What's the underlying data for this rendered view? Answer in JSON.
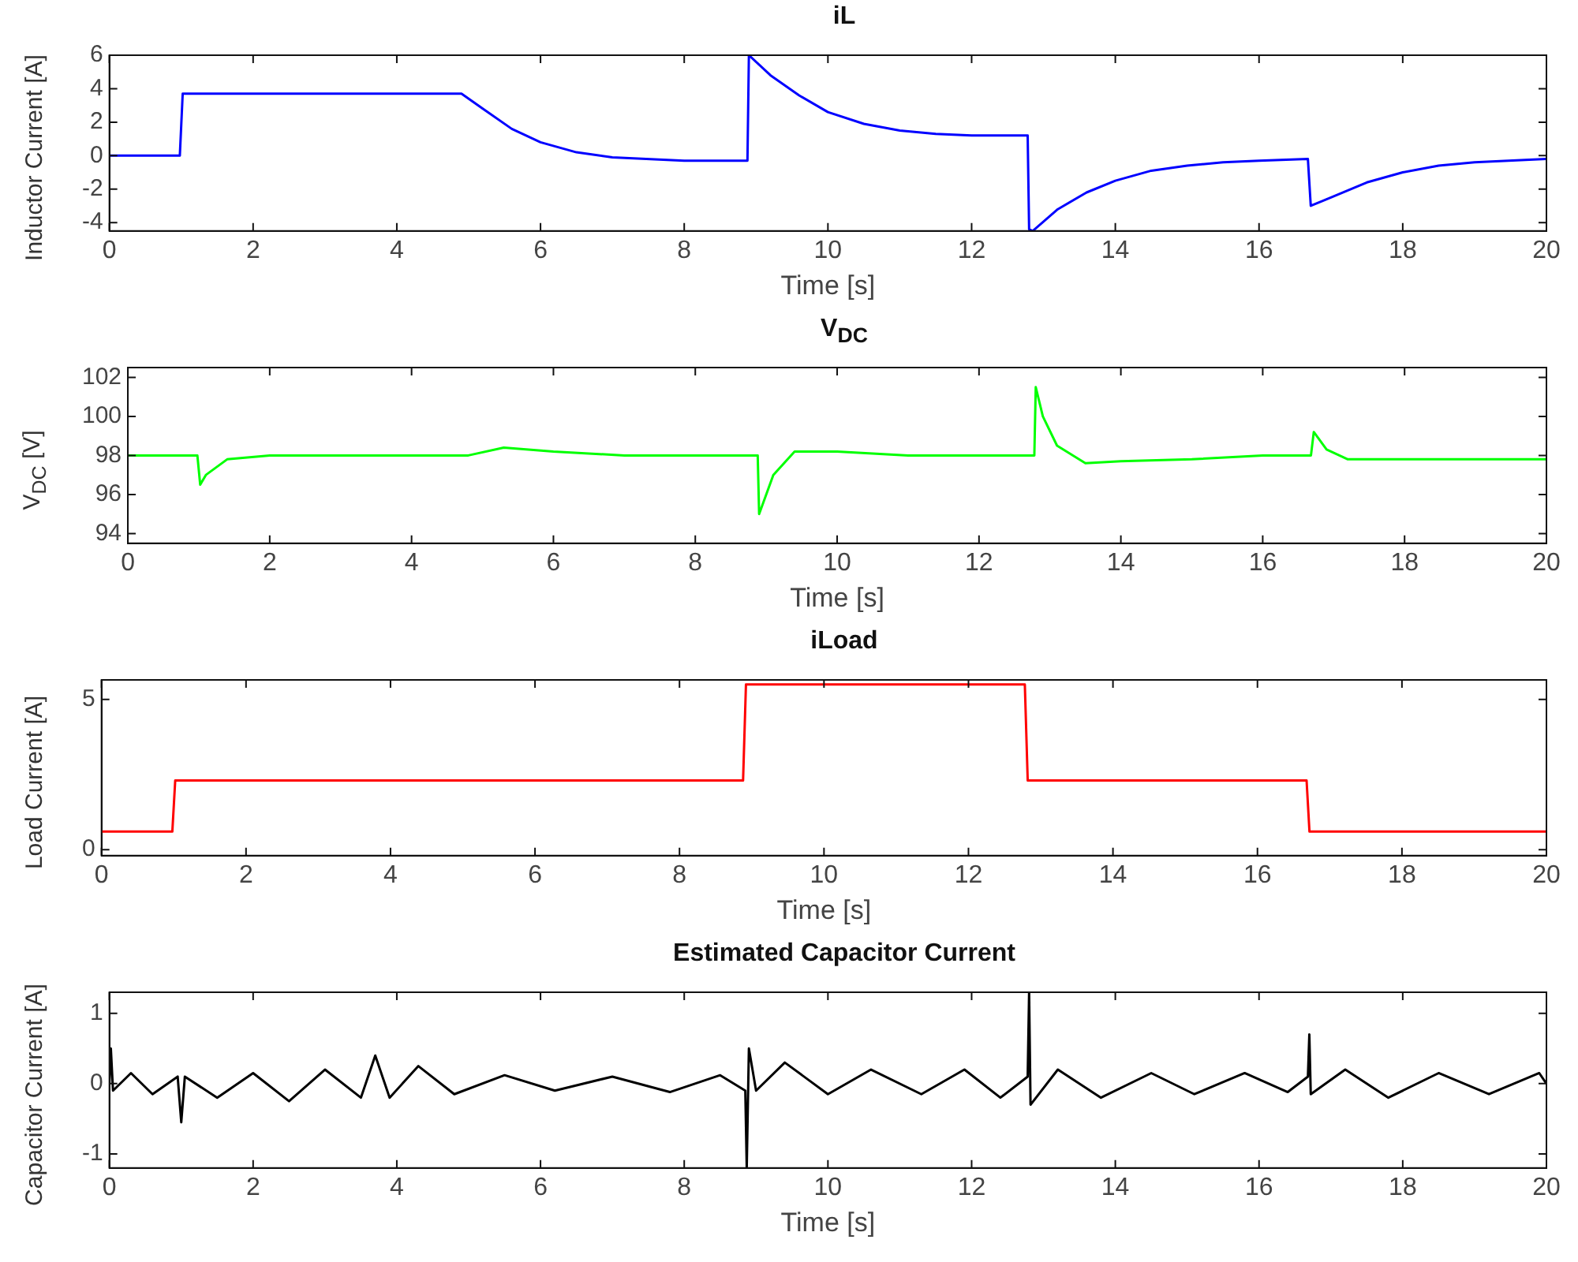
{
  "chart_data": [
    {
      "type": "line",
      "title": "iL",
      "xlabel": "Time [s]",
      "ylabel": "Inductor Current [A]",
      "xlim": [
        0,
        20
      ],
      "xticks": [
        0,
        2,
        4,
        6,
        8,
        10,
        12,
        14,
        16,
        18,
        20
      ],
      "ylim": [
        -4.5,
        6
      ],
      "yticks": [
        -4,
        -2,
        0,
        2,
        4,
        6
      ],
      "grid": false,
      "legend": false,
      "marker": "none",
      "series": [
        {
          "color": "#0000ff",
          "x": [
            0,
            0.98,
            1.02,
            2,
            3,
            4,
            4.9,
            5.2,
            5.6,
            6,
            6.5,
            7,
            8,
            8.88,
            8.9,
            9.2,
            9.6,
            10,
            10.5,
            11,
            11.5,
            12,
            12.78,
            12.8,
            12.85,
            13.2,
            13.6,
            14,
            14.5,
            15,
            15.5,
            16,
            16.68,
            16.72,
            17,
            17.5,
            18,
            18.5,
            19,
            20
          ],
          "values": [
            0,
            0,
            3.7,
            3.7,
            3.7,
            3.7,
            3.7,
            2.8,
            1.6,
            0.8,
            0.2,
            -0.1,
            -0.3,
            -0.3,
            6,
            4.8,
            3.6,
            2.6,
            1.9,
            1.5,
            1.3,
            1.2,
            1.2,
            -4.4,
            -4.5,
            -3.2,
            -2.2,
            -1.5,
            -0.9,
            -0.6,
            -0.4,
            -0.3,
            -0.2,
            -3,
            -2.5,
            -1.6,
            -1,
            -0.6,
            -0.4,
            -0.2
          ]
        }
      ]
    },
    {
      "type": "line",
      "title": "V$_{DC}$",
      "xlabel": "Time [s]",
      "ylabel": "V$_{DC}$ [V]",
      "xlim": [
        0,
        20
      ],
      "xticks": [
        0,
        2,
        4,
        6,
        8,
        10,
        12,
        14,
        16,
        18,
        20
      ],
      "ylim": [
        93.5,
        102.5
      ],
      "yticks": [
        94,
        96,
        98,
        100,
        102
      ],
      "grid": false,
      "legend": false,
      "marker": "none",
      "series": [
        {
          "color": "#00ff00",
          "x": [
            0,
            0.98,
            1.02,
            1.1,
            1.4,
            2,
            3,
            4,
            4.8,
            5.3,
            6,
            7,
            8,
            8.88,
            8.9,
            9.1,
            9.4,
            10,
            11,
            12,
            12.78,
            12.8,
            12.9,
            13.1,
            13.5,
            14,
            15,
            16,
            16.68,
            16.72,
            16.9,
            17.2,
            18,
            19,
            20
          ],
          "values": [
            98,
            98,
            96.5,
            97,
            97.8,
            98,
            98,
            98,
            98,
            98.4,
            98.2,
            98,
            98,
            98,
            95,
            97,
            98.2,
            98.2,
            98,
            98,
            98,
            101.5,
            100,
            98.5,
            97.6,
            97.7,
            97.8,
            98,
            98,
            99.2,
            98.3,
            97.8,
            97.8,
            97.8,
            97.8
          ]
        }
      ]
    },
    {
      "type": "line",
      "title": "iLoad",
      "xlabel": "Time [s]",
      "ylabel": "Load Current [A]",
      "xlim": [
        0,
        20
      ],
      "xticks": [
        0,
        2,
        4,
        6,
        8,
        10,
        12,
        14,
        16,
        18,
        20
      ],
      "ylim": [
        -0.2,
        5.65
      ],
      "yticks": [
        0,
        5
      ],
      "grid": false,
      "legend": false,
      "marker": "none",
      "series": [
        {
          "color": "#ff0000",
          "x": [
            0,
            0.98,
            1.02,
            8.88,
            8.92,
            12.78,
            12.82,
            16.68,
            16.72,
            20
          ],
          "values": [
            0.6,
            0.6,
            2.3,
            2.3,
            5.5,
            5.5,
            2.3,
            2.3,
            0.6,
            0.6
          ]
        }
      ]
    },
    {
      "type": "line",
      "title": "Estimated Capacitor Current",
      "xlabel": "Time [s]",
      "ylabel": "Capacitor Current [A]",
      "xlim": [
        0,
        20
      ],
      "xticks": [
        0,
        2,
        4,
        6,
        8,
        10,
        12,
        14,
        16,
        18,
        20
      ],
      "ylim": [
        -1.2,
        1.3
      ],
      "yticks": [
        -1,
        0,
        1
      ],
      "grid": false,
      "legend": false,
      "marker": "none",
      "series": [
        {
          "color": "#000000",
          "x": [
            0,
            0.02,
            0.05,
            0.3,
            0.6,
            0.95,
            1,
            1.05,
            1.5,
            2,
            2.5,
            3,
            3.5,
            3.7,
            3.9,
            4.3,
            4.8,
            5.5,
            6.2,
            7,
            7.8,
            8.5,
            8.85,
            8.87,
            8.9,
            9,
            9.4,
            10,
            10.6,
            11.3,
            11.9,
            12.4,
            12.78,
            12.8,
            12.82,
            13.2,
            13.8,
            14.5,
            15.1,
            15.8,
            16.4,
            16.68,
            16.7,
            16.72,
            17.2,
            17.8,
            18.5,
            19.2,
            19.9,
            20
          ],
          "values": [
            0,
            0.5,
            -0.1,
            0.15,
            -0.15,
            0.1,
            -0.55,
            0.1,
            -0.2,
            0.15,
            -0.25,
            0.2,
            -0.2,
            0.4,
            -0.2,
            0.25,
            -0.15,
            0.12,
            -0.1,
            0.1,
            -0.12,
            0.12,
            -0.1,
            -1.2,
            0.5,
            -0.1,
            0.3,
            -0.15,
            0.2,
            -0.15,
            0.2,
            -0.2,
            0.1,
            1.3,
            -0.3,
            0.2,
            -0.2,
            0.15,
            -0.15,
            0.15,
            -0.12,
            0.1,
            0.7,
            -0.15,
            0.2,
            -0.2,
            0.15,
            -0.15,
            0.15,
            0
          ]
        }
      ]
    }
  ]
}
